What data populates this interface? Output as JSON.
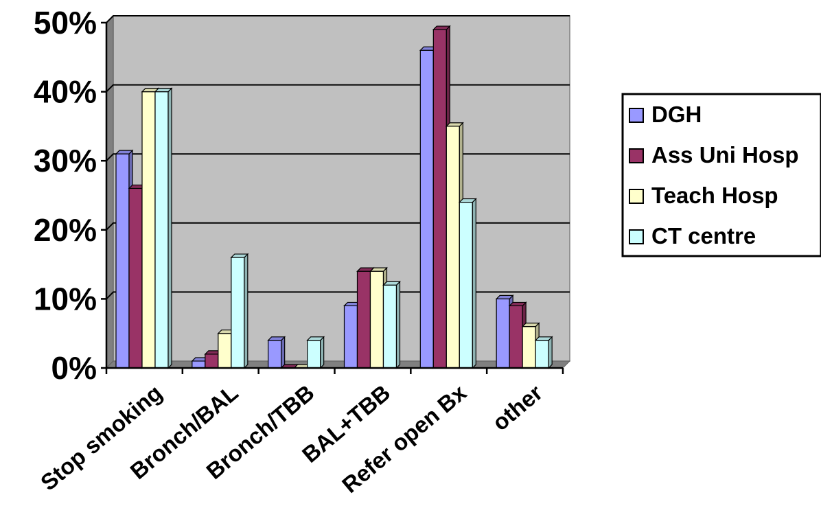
{
  "chart_data": {
    "type": "bar",
    "title": "",
    "xlabel": "",
    "ylabel": "",
    "ylim": [
      0,
      50
    ],
    "y_ticks": [
      "0%",
      "10%",
      "20%",
      "30%",
      "40%",
      "50%"
    ],
    "grid": true,
    "legend_position": "right",
    "categories": [
      "Stop smoking",
      "Bronch/BAL",
      "Bronch/TBB",
      "BAL+TBB",
      "Refer open Bx",
      "other"
    ],
    "series": [
      {
        "name": "DGH",
        "color": "#9999FF",
        "values": [
          31,
          1,
          4,
          9,
          46,
          10
        ]
      },
      {
        "name": "Ass Uni Hosp",
        "color": "#993366",
        "values": [
          26,
          2,
          0,
          14,
          49,
          9
        ]
      },
      {
        "name": "Teach Hosp",
        "color": "#FFFFCC",
        "values": [
          40,
          5,
          0,
          14,
          35,
          6
        ]
      },
      {
        "name": "CT centre",
        "color": "#CCFFFF",
        "values": [
          40,
          16,
          4,
          12,
          24,
          4
        ]
      }
    ],
    "plot_background": "#C0C0C0"
  }
}
